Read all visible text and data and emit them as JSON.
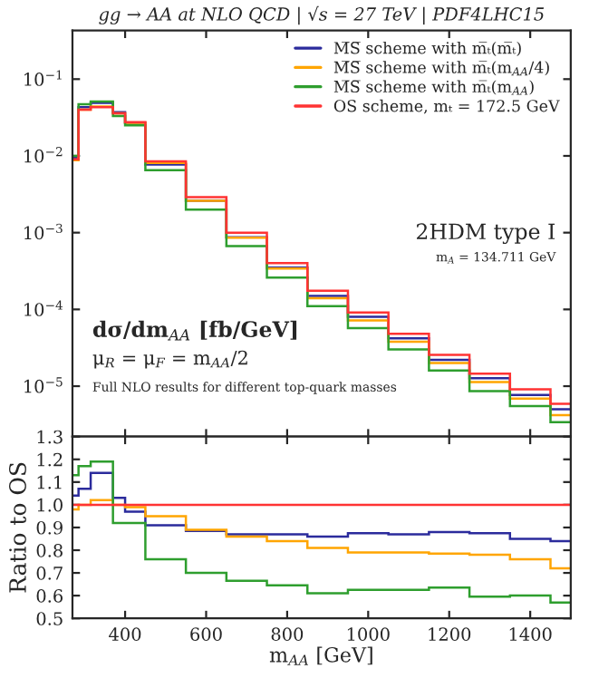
{
  "chart_data": [
    {
      "type": "histogram",
      "title": "gg → AA at NLO QCD | √s = 27 TeV | PDF4LHC15",
      "bins": [
        270,
        285,
        315,
        370,
        400,
        450,
        550,
        650,
        750,
        850,
        950,
        1050,
        1150,
        1250,
        1350,
        1450,
        1500
      ],
      "series": [
        {
          "name": "M̅S̅ scheme with m̅ₜ(m̅ₜ)",
          "color": "#2b2b9c",
          "values": [
            0.0094,
            0.043,
            0.049,
            0.037,
            0.027,
            0.0077,
            0.0026,
            0.00087,
            0.00035,
            0.00015,
            8e-05,
            4.2e-05,
            2.2e-05,
            1.27e-05,
            7.7e-06,
            5e-06
          ]
        },
        {
          "name": "M̅S̅ scheme with m̅ₜ(m$_{AA}$/4)",
          "color": "#ffa500",
          "values": [
            0.0088,
            0.04,
            0.044,
            0.036,
            0.027,
            0.0081,
            0.0026,
            0.00086,
            0.00034,
            0.00014,
            7.2e-05,
            3.8e-05,
            2e-05,
            1.13e-05,
            6.9e-06,
            4.2e-06
          ]
        },
        {
          "name": "M̅S̅ scheme with m̅ₜ(m$_{AA}$)",
          "color": "#2e9e2e",
          "values": [
            0.01,
            0.047,
            0.051,
            0.033,
            0.025,
            0.0065,
            0.002,
            0.00067,
            0.00026,
            0.00011,
            5.7e-05,
            3e-05,
            1.6e-05,
            8.6e-06,
            5.5e-06,
            3.4e-06
          ]
        },
        {
          "name": "OS scheme, mₜ = 172.5 GeV",
          "color": "#ff3333",
          "values": [
            0.009,
            0.04,
            0.043,
            0.036,
            0.0275,
            0.0085,
            0.0029,
            0.001,
            0.0004,
            0.000175,
            9.1e-05,
            4.8e-05,
            2.55e-05,
            1.45e-05,
            9.1e-06,
            5.9e-06
          ]
        }
      ],
      "log": "y",
      "xlim": [
        270,
        1500
      ],
      "ylim": [
        2.2e-06,
        0.43
      ],
      "yticks": [
        {
          "value": 0.1,
          "label": "10$^{−1}$"
        },
        {
          "value": 0.01,
          "label": "10$^{−2}$"
        },
        {
          "value": 0.001,
          "label": "10$^{−3}$"
        },
        {
          "value": 0.0001,
          "label": "10$^{−4}$"
        },
        {
          "value": 1e-05,
          "label": "10$^{−5}$"
        }
      ],
      "tick_labels": "y",
      "legend": "top right",
      "annotations": [
        "2HDM type I",
        "m$_{A}$ = 134.711 GeV",
        "dσ/dm$_{AA}$ [fb/GeV]",
        "μ$_{R}$ = μ$_{F}$ = m$_{AA}$/2",
        "Full NLO results for different top-quark masses"
      ]
    },
    {
      "type": "histogram",
      "bins": [
        270,
        285,
        315,
        370,
        400,
        450,
        550,
        650,
        750,
        850,
        950,
        1050,
        1150,
        1250,
        1350,
        1450,
        1500
      ],
      "series": [
        {
          "color": "#2b2b9c",
          "values": [
            1.04,
            1.07,
            1.14,
            1.03,
            0.97,
            0.91,
            0.885,
            0.87,
            0.87,
            0.86,
            0.875,
            0.87,
            0.88,
            0.875,
            0.85,
            0.84
          ]
        },
        {
          "color": "#ffa500",
          "values": [
            0.98,
            1.0,
            1.02,
            1.0,
            0.99,
            0.95,
            0.89,
            0.86,
            0.84,
            0.81,
            0.79,
            0.79,
            0.785,
            0.78,
            0.76,
            0.72
          ]
        },
        {
          "color": "#2e9e2e",
          "values": [
            1.13,
            1.17,
            1.19,
            0.92,
            0.92,
            0.76,
            0.7,
            0.665,
            0.645,
            0.61,
            0.625,
            0.625,
            0.635,
            0.595,
            0.6,
            0.57
          ]
        },
        {
          "color": "#ff3333",
          "values": [
            1.0,
            1.0,
            1.0,
            1.0,
            1.0,
            1.0,
            1.0,
            1.0,
            1.0,
            1.0,
            1.0,
            1.0,
            1.0,
            1.0,
            1.0,
            1.0
          ]
        }
      ],
      "xlabel": "m$_{AA}$ [GeV]",
      "ylabel": "Ratio to OS",
      "xlim": [
        270,
        1500
      ],
      "ylim": [
        0.5,
        1.3
      ],
      "xticks": [
        400,
        600,
        800,
        1000,
        1200,
        1400
      ],
      "yticks": [
        {
          "value": 0.5,
          "label": "0.5"
        },
        {
          "value": 0.6,
          "label": "0.6"
        },
        {
          "value": 0.7,
          "label": "0.7"
        },
        {
          "value": 0.8,
          "label": "0.8"
        },
        {
          "value": 0.9,
          "label": "0.9"
        },
        {
          "value": 1.0,
          "label": "1.0"
        },
        {
          "value": 1.1,
          "label": "1.1"
        },
        {
          "value": 1.2,
          "label": "1.2"
        },
        {
          "value": 1.3,
          "label": "1.3"
        }
      ]
    }
  ]
}
